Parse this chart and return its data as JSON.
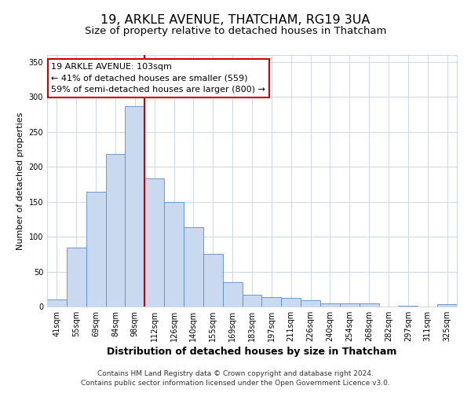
{
  "title": "19, ARKLE AVENUE, THATCHAM, RG19 3UA",
  "subtitle": "Size of property relative to detached houses in Thatcham",
  "xlabel": "Distribution of detached houses by size in Thatcham",
  "ylabel": "Number of detached properties",
  "categories": [
    "41sqm",
    "55sqm",
    "69sqm",
    "84sqm",
    "98sqm",
    "112sqm",
    "126sqm",
    "140sqm",
    "155sqm",
    "169sqm",
    "183sqm",
    "197sqm",
    "211sqm",
    "226sqm",
    "240sqm",
    "254sqm",
    "268sqm",
    "282sqm",
    "297sqm",
    "311sqm",
    "325sqm"
  ],
  "bar_heights": [
    10,
    84,
    164,
    218,
    287,
    183,
    150,
    114,
    75,
    35,
    17,
    13,
    12,
    9,
    5,
    4,
    5,
    0,
    1,
    0,
    3
  ],
  "bar_color": "#c9d9f0",
  "bar_edge_color": "#5b8cc8",
  "vline_index": 4.5,
  "vline_color": "#cc0000",
  "ylim": [
    0,
    360
  ],
  "yticks": [
    0,
    50,
    100,
    150,
    200,
    250,
    300,
    350
  ],
  "annotation_title": "19 ARKLE AVENUE: 103sqm",
  "annotation_line1": "← 41% of detached houses are smaller (559)",
  "annotation_line2": "59% of semi-detached houses are larger (800) →",
  "annotation_box_color": "#ffffff",
  "annotation_box_edge_color": "#cc0000",
  "footer_line1": "Contains HM Land Registry data © Crown copyright and database right 2024.",
  "footer_line2": "Contains public sector information licensed under the Open Government Licence v3.0.",
  "background_color": "#ffffff",
  "grid_color": "#c8d8e8",
  "title_fontsize": 11.5,
  "subtitle_fontsize": 9.5,
  "xlabel_fontsize": 9,
  "ylabel_fontsize": 8,
  "tick_fontsize": 7,
  "annotation_fontsize": 8,
  "footer_fontsize": 6.5
}
